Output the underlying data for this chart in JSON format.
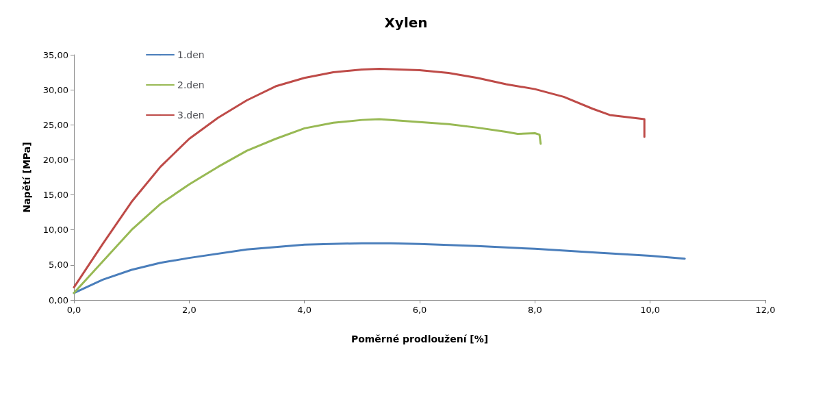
{
  "chart_data": {
    "type": "line",
    "title": "Xylen",
    "xlabel": "Poměrné prodloužení [%]",
    "ylabel": "Napětí [MPa]",
    "xlim": [
      0,
      12
    ],
    "xticks": [
      {
        "value": 0,
        "label": "0,0"
      },
      {
        "value": 2,
        "label": "2,0"
      },
      {
        "value": 4,
        "label": "4,0"
      },
      {
        "value": 6,
        "label": "6,0"
      },
      {
        "value": 8,
        "label": "8,0"
      },
      {
        "value": 10,
        "label": "10,0"
      },
      {
        "value": 12,
        "label": "12,0"
      }
    ],
    "ylim": [
      0,
      35
    ],
    "yticks": [
      {
        "value": 0,
        "label": "0,00"
      },
      {
        "value": 5,
        "label": "5,00"
      },
      {
        "value": 10,
        "label": "10,00"
      },
      {
        "value": 15,
        "label": "15,00"
      },
      {
        "value": 20,
        "label": "20,00"
      },
      {
        "value": 25,
        "label": "25,00"
      },
      {
        "value": 30,
        "label": "30,00"
      },
      {
        "value": 35,
        "label": "35,00"
      }
    ],
    "grid": false,
    "legend": "top left",
    "marker": "none",
    "line_style": "solid",
    "series": [
      {
        "name": "1.den",
        "color": "#4a7ebb",
        "x": [
          0,
          0.5,
          1,
          1.5,
          2,
          3,
          4,
          5,
          5.5,
          6,
          7,
          8,
          9,
          10,
          10.6
        ],
        "values": [
          1.0,
          2.9,
          4.3,
          5.3,
          6.0,
          7.2,
          7.9,
          8.1,
          8.1,
          8.0,
          7.7,
          7.3,
          6.8,
          6.3,
          5.9
        ]
      },
      {
        "name": "2.den",
        "color": "#98b954",
        "x": [
          0,
          0.5,
          1,
          1.5,
          2,
          2.5,
          3,
          3.5,
          4,
          4.5,
          5,
          5.3,
          6,
          6.5,
          7,
          7.5,
          7.7,
          8.0,
          8.08,
          8.1
        ],
        "values": [
          1.0,
          5.5,
          10,
          13.7,
          16.5,
          19,
          21.3,
          23,
          24.5,
          25.3,
          25.7,
          25.8,
          25.4,
          25.1,
          24.6,
          24.0,
          23.7,
          23.8,
          23.6,
          22.3
        ]
      },
      {
        "name": "3.den",
        "color": "#be4b48",
        "x": [
          0,
          0.5,
          1,
          1.5,
          2,
          2.5,
          3,
          3.5,
          4,
          4.5,
          5,
          5.3,
          6,
          6.5,
          7,
          7.5,
          8,
          8.5,
          9,
          9.3,
          9.6,
          9.9,
          9.9
        ],
        "values": [
          1.8,
          8,
          14,
          19,
          23,
          26,
          28.5,
          30.5,
          31.7,
          32.5,
          32.9,
          33.0,
          32.8,
          32.4,
          31.7,
          30.8,
          30.1,
          29,
          27.3,
          26.4,
          26.1,
          25.8,
          23.3
        ]
      }
    ]
  }
}
